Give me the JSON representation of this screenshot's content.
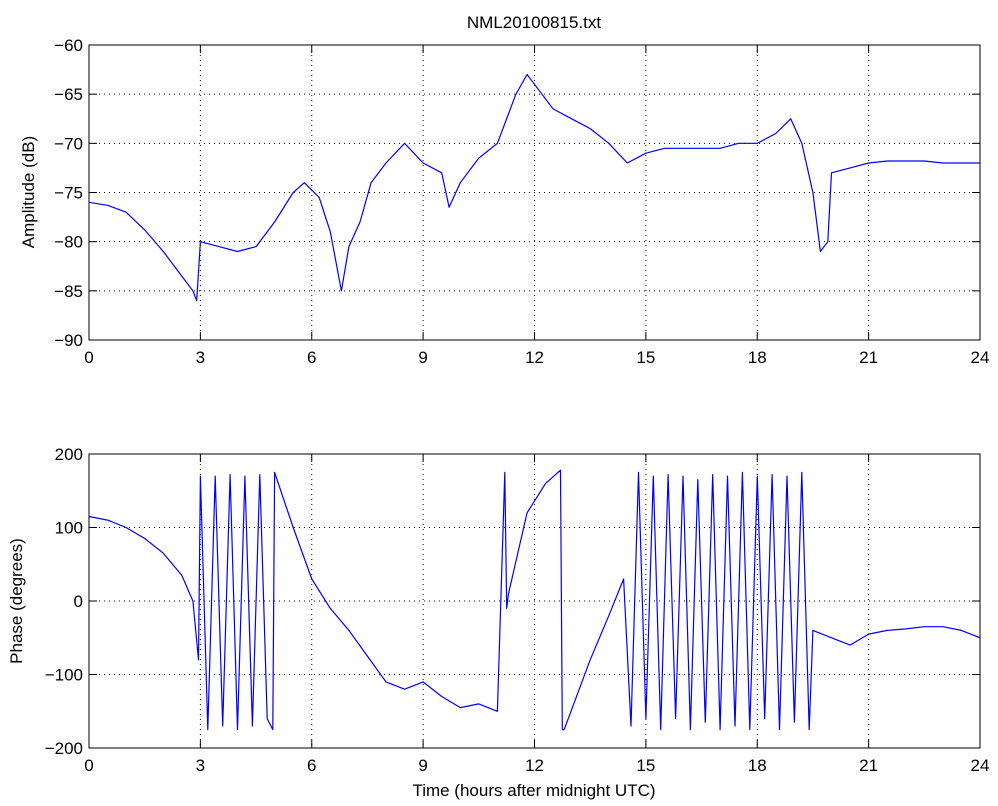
{
  "figure": {
    "title": "NML20100815.txt",
    "line_color": "#0000ff",
    "grid": "dotted"
  },
  "chart_data": [
    {
      "type": "line",
      "title": "NML20100815.txt",
      "xlabel": "",
      "ylabel": "Amplitude (dB)",
      "xlim": [
        0,
        24
      ],
      "ylim": [
        -90,
        -60
      ],
      "xticks": [
        0,
        3,
        6,
        9,
        12,
        15,
        18,
        21,
        24
      ],
      "yticks": [
        -90,
        -85,
        -80,
        -75,
        -70,
        -65,
        -60
      ],
      "grid": true,
      "series": [
        {
          "x": [
            0,
            0.5,
            1.0,
            1.5,
            2.0,
            2.5,
            2.8,
            2.9,
            3.0,
            3.5,
            4.0,
            4.5,
            5.0,
            5.5,
            5.8,
            6.2,
            6.5,
            6.8,
            7.0,
            7.3,
            7.6,
            8.0,
            8.5,
            9.0,
            9.5,
            9.7,
            10.0,
            10.5,
            11.0,
            11.5,
            11.8,
            12.0,
            12.5,
            13.0,
            13.5,
            14.0,
            14.5,
            15.0,
            15.5,
            16.0,
            16.5,
            17.0,
            17.5,
            18.0,
            18.5,
            18.9,
            19.2,
            19.5,
            19.7,
            19.9,
            20.0,
            20.5,
            21.0,
            21.5,
            22.0,
            22.5,
            23.0,
            23.5,
            24.0
          ],
          "y": [
            -76,
            -76.3,
            -77,
            -78.8,
            -81,
            -83.5,
            -85,
            -86,
            -80,
            -80.5,
            -81,
            -80.5,
            -78,
            -75,
            -74,
            -75.5,
            -79,
            -85,
            -80.5,
            -78,
            -74,
            -72,
            -70,
            -72,
            -73,
            -76.5,
            -74,
            -71.5,
            -70,
            -65,
            -63,
            -64,
            -66.5,
            -67.5,
            -68.5,
            -70,
            -72,
            -71,
            -70.5,
            -70.5,
            -70.5,
            -70.5,
            -70,
            -70,
            -69,
            -67.5,
            -70,
            -75,
            -81,
            -80,
            -73,
            -72.5,
            -72,
            -71.8,
            -71.8,
            -71.8,
            -72,
            -72,
            -72
          ]
        }
      ]
    },
    {
      "type": "line",
      "title": "",
      "xlabel": "Time (hours after midnight UTC)",
      "ylabel": "Phase (degrees)",
      "xlim": [
        0,
        24
      ],
      "ylim": [
        -200,
        200
      ],
      "xticks": [
        0,
        3,
        6,
        9,
        12,
        15,
        18,
        21,
        24
      ],
      "yticks": [
        -200,
        -100,
        0,
        100,
        200
      ],
      "grid": true,
      "series": [
        {
          "x": [
            0,
            0.5,
            1.0,
            1.5,
            2.0,
            2.5,
            2.8,
            2.95,
            3.0,
            3.2,
            3.4,
            3.6,
            3.8,
            4.0,
            4.2,
            4.4,
            4.6,
            4.8,
            4.95,
            5.0,
            5.5,
            6.0,
            6.5,
            7.0,
            7.5,
            8.0,
            8.5,
            9.0,
            9.5,
            10.0,
            10.5,
            11.0,
            11.2,
            11.25,
            11.3,
            11.8,
            12.3,
            12.7,
            12.75,
            12.8,
            13.5,
            14.0,
            14.4,
            14.6,
            14.8,
            15.0,
            15.2,
            15.4,
            15.6,
            15.8,
            16.0,
            16.2,
            16.4,
            16.6,
            16.8,
            17.0,
            17.2,
            17.4,
            17.6,
            17.8,
            18.0,
            18.2,
            18.4,
            18.6,
            18.8,
            19.0,
            19.2,
            19.4,
            19.5,
            20.0,
            20.5,
            21.0,
            21.5,
            22.0,
            22.5,
            23.0,
            23.5,
            24.0
          ],
          "y": [
            115,
            110,
            100,
            85,
            65,
            35,
            0,
            -80,
            170,
            -175,
            170,
            -170,
            172,
            -175,
            170,
            -170,
            172,
            -160,
            -175,
            175,
            100,
            30,
            -10,
            -40,
            -75,
            -110,
            -120,
            -110,
            -130,
            -145,
            -140,
            -150,
            175,
            -10,
            10,
            120,
            160,
            178,
            -175,
            -175,
            -80,
            -20,
            30,
            -170,
            175,
            -160,
            170,
            -175,
            172,
            -160,
            170,
            -175,
            165,
            -165,
            172,
            -175,
            170,
            -170,
            175,
            -175,
            170,
            -160,
            172,
            -175,
            170,
            -165,
            175,
            -175,
            -40,
            -50,
            -60,
            -45,
            -40,
            -38,
            -35,
            -35,
            -40,
            -50
          ]
        }
      ]
    }
  ]
}
